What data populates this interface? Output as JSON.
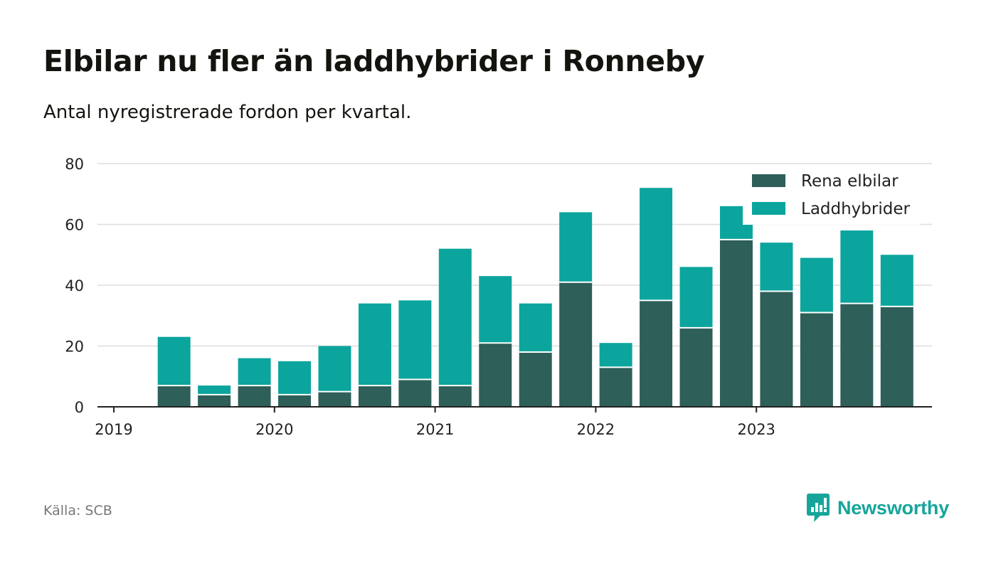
{
  "header": {
    "title": "Elbilar nu fler än laddhybrider i Ronneby",
    "subtitle": "Antal nyregistrerade fordon per kvartal."
  },
  "footer": {
    "source": "Källa: SCB",
    "brand": "Newsworthy"
  },
  "colors": {
    "elbilar": "#2e5f58",
    "laddhybrider": "#0ba59d",
    "grid": "#dddddd",
    "axis": "#222222",
    "brand": "#16a59b"
  },
  "chart_data": {
    "type": "bar",
    "stacked": true,
    "title": "Elbilar nu fler än laddhybrider i Ronneby",
    "subtitle": "Antal nyregistrerade fordon per kvartal.",
    "xlabel": "",
    "ylabel": "",
    "ylim": [
      0,
      80
    ],
    "yticks": [
      0,
      20,
      40,
      60,
      80
    ],
    "grid": true,
    "legend_position": "top-right",
    "x_tick_labels": [
      "2019",
      "2020",
      "2021",
      "2022",
      "2023"
    ],
    "categories": [
      "2019 Q2",
      "2019 Q3",
      "2019 Q4",
      "2020 Q1",
      "2020 Q2",
      "2020 Q3",
      "2020 Q4",
      "2021 Q1",
      "2021 Q2",
      "2021 Q3",
      "2021 Q4",
      "2022 Q1",
      "2022 Q2",
      "2022 Q3",
      "2022 Q4",
      "2023 Q1",
      "2023 Q2",
      "2023 Q3",
      "2023 Q4"
    ],
    "series": [
      {
        "name": "Rena elbilar",
        "values": [
          7,
          4,
          7,
          4,
          5,
          7,
          9,
          7,
          21,
          18,
          41,
          13,
          35,
          26,
          55,
          38,
          31,
          34,
          33
        ]
      },
      {
        "name": "Laddhybrider",
        "values": [
          16,
          3,
          9,
          11,
          15,
          27,
          26,
          45,
          22,
          16,
          23,
          8,
          37,
          20,
          11,
          16,
          18,
          24,
          17
        ]
      }
    ]
  }
}
